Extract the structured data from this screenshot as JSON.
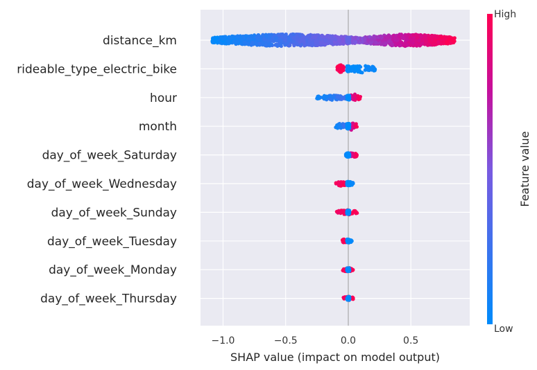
{
  "chart_data": {
    "type": "scatter",
    "subtype": "shap-beeswarm",
    "xlabel": "SHAP value (impact on model output)",
    "xlim": [
      -1.18,
      0.97
    ],
    "xticks": [
      {
        "value": -1.0,
        "label": "−1.0"
      },
      {
        "value": -0.5,
        "label": "−0.5"
      },
      {
        "value": 0.0,
        "label": "0.0"
      },
      {
        "value": 0.5,
        "label": "0.5"
      }
    ],
    "grid": true,
    "colorbar": {
      "label": "Feature value",
      "high_label": "High",
      "low_label": "Low",
      "low_color": "#008bfb",
      "high_color": "#ff0052"
    },
    "features": [
      {
        "name": "distance_km",
        "shap_range": [
          -1.09,
          0.85
        ],
        "low_range": [
          -1.09,
          0.1
        ],
        "high_range": [
          0.1,
          0.85
        ],
        "max_spread": 9
      },
      {
        "name": "rideable_type_electric_bike",
        "shap_range": [
          -0.09,
          0.22
        ],
        "low_range": [
          0.0,
          0.22
        ],
        "high_range": [
          -0.09,
          -0.03
        ],
        "max_spread": 9
      },
      {
        "name": "hour",
        "shap_range": [
          -0.25,
          0.1
        ],
        "low_range": [
          -0.25,
          0.0
        ],
        "high_range": [
          0.0,
          0.1
        ],
        "max_spread": 6
      },
      {
        "name": "month",
        "shap_range": [
          -0.1,
          0.07
        ],
        "low_range": [
          -0.1,
          0.0
        ],
        "high_range": [
          0.0,
          0.07
        ],
        "max_spread": 8
      },
      {
        "name": "day_of_week_Saturday",
        "shap_range": [
          -0.03,
          0.07
        ],
        "low_range": [
          -0.02,
          0.0
        ],
        "high_range": [
          0.0,
          0.07
        ],
        "max_spread": 5
      },
      {
        "name": "day_of_week_Wednesday",
        "shap_range": [
          -0.1,
          0.04
        ],
        "low_range": [
          -0.01,
          0.04
        ],
        "high_range": [
          -0.1,
          -0.01
        ],
        "max_spread": 5
      },
      {
        "name": "day_of_week_Sunday",
        "shap_range": [
          -0.1,
          0.08
        ],
        "low_range": [
          -0.01,
          0.0
        ],
        "high_range": [
          -0.1,
          0.08
        ],
        "max_spread": 5
      },
      {
        "name": "day_of_week_Tuesday",
        "shap_range": [
          -0.05,
          0.03
        ],
        "low_range": [
          -0.01,
          0.03
        ],
        "high_range": [
          -0.05,
          -0.01
        ],
        "max_spread": 4
      },
      {
        "name": "day_of_week_Monday",
        "shap_range": [
          -0.05,
          0.04
        ],
        "low_range": [
          -0.01,
          0.0
        ],
        "high_range": [
          -0.05,
          0.04
        ],
        "max_spread": 4
      },
      {
        "name": "day_of_week_Thursday",
        "shap_range": [
          -0.04,
          0.04
        ],
        "low_range": [
          -0.01,
          0.01
        ],
        "high_range": [
          -0.04,
          0.04
        ],
        "max_spread": 4
      }
    ]
  }
}
